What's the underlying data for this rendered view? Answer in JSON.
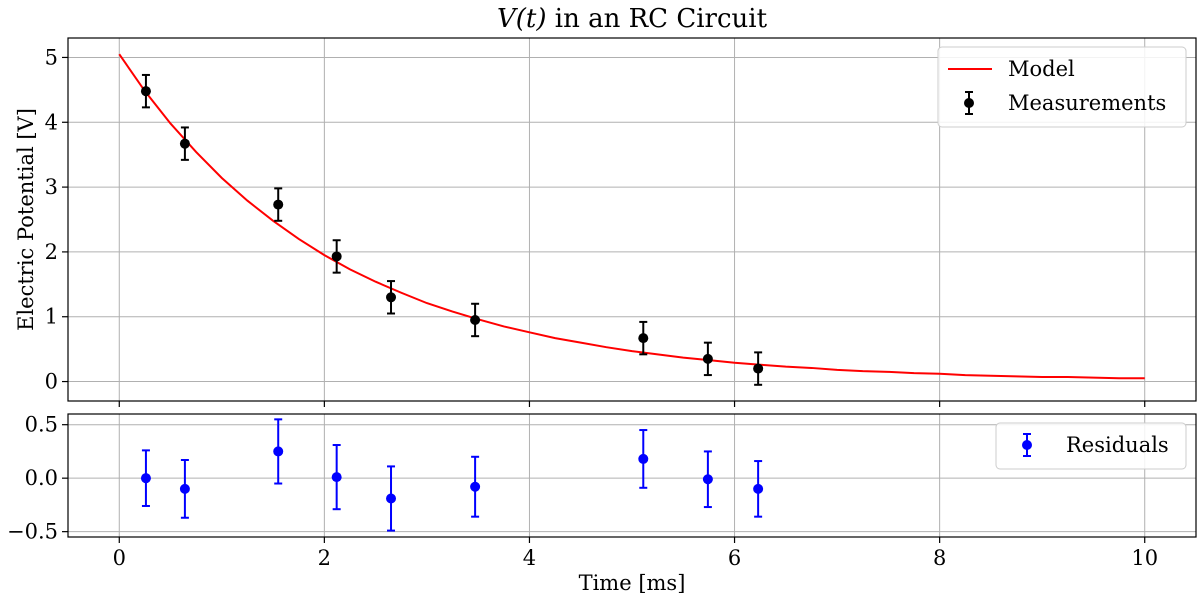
{
  "chart_data": [
    {
      "type": "line",
      "title_var": "V(t)",
      "title_rest": " in an RC Circuit",
      "ylabel": "Electric Potential [V]",
      "xlim": [
        -0.5,
        10.5
      ],
      "ylim": [
        -0.3,
        5.3
      ],
      "xticks": [
        0,
        2,
        4,
        6,
        8,
        10
      ],
      "yticks": [
        0,
        1,
        2,
        3,
        4,
        5
      ],
      "grid": true,
      "legend_position": "top-right",
      "series": [
        {
          "name": "Model",
          "kind": "line",
          "color": "#ff0000",
          "x": [
            0,
            0.25,
            0.5,
            0.75,
            1,
            1.25,
            1.5,
            1.75,
            2,
            2.25,
            2.5,
            2.75,
            3,
            3.25,
            3.5,
            3.75,
            4,
            4.25,
            4.5,
            4.75,
            5,
            5.25,
            5.5,
            5.75,
            6,
            6.25,
            6.5,
            6.75,
            7,
            7.25,
            7.5,
            7.75,
            8,
            8.25,
            8.5,
            8.75,
            9,
            9.25,
            9.5,
            9.75,
            10
          ],
          "y": [
            5.05,
            4.48,
            3.98,
            3.54,
            3.14,
            2.79,
            2.48,
            2.2,
            1.95,
            1.73,
            1.54,
            1.37,
            1.21,
            1.08,
            0.96,
            0.85,
            0.76,
            0.67,
            0.6,
            0.53,
            0.47,
            0.42,
            0.37,
            0.33,
            0.29,
            0.26,
            0.23,
            0.21,
            0.18,
            0.16,
            0.15,
            0.13,
            0.12,
            0.1,
            0.09,
            0.08,
            0.07,
            0.07,
            0.06,
            0.05,
            0.05
          ]
        },
        {
          "name": "Measurements",
          "kind": "errorbar",
          "color": "#000000",
          "x": [
            0.26,
            0.64,
            1.55,
            2.12,
            2.65,
            3.47,
            5.11,
            5.74,
            6.23
          ],
          "y": [
            4.48,
            3.67,
            2.73,
            1.93,
            1.3,
            0.95,
            0.67,
            0.35,
            0.2
          ],
          "yerr": [
            0.25,
            0.25,
            0.25,
            0.25,
            0.25,
            0.25,
            0.25,
            0.25,
            0.25
          ]
        }
      ]
    },
    {
      "type": "scatter",
      "xlabel": "Time [ms]",
      "xlim": [
        -0.5,
        10.5
      ],
      "ylim": [
        -0.55,
        0.6
      ],
      "xticks": [
        0,
        2,
        4,
        6,
        8,
        10
      ],
      "yticks": [
        -0.5,
        0.0,
        0.5
      ],
      "ytick_labels": [
        "−0.5",
        "0.0",
        "0.5"
      ],
      "grid": true,
      "legend_position": "top-right",
      "series": [
        {
          "name": "Residuals",
          "kind": "errorbar",
          "color": "#0000ff",
          "x": [
            0.26,
            0.64,
            1.55,
            2.12,
            2.65,
            3.47,
            5.11,
            5.74,
            6.23
          ],
          "y": [
            0.0,
            -0.1,
            0.25,
            0.01,
            -0.19,
            -0.08,
            0.18,
            -0.01,
            -0.1
          ],
          "yerr": [
            0.26,
            0.27,
            0.3,
            0.3,
            0.3,
            0.28,
            0.27,
            0.26,
            0.26
          ]
        }
      ]
    }
  ]
}
